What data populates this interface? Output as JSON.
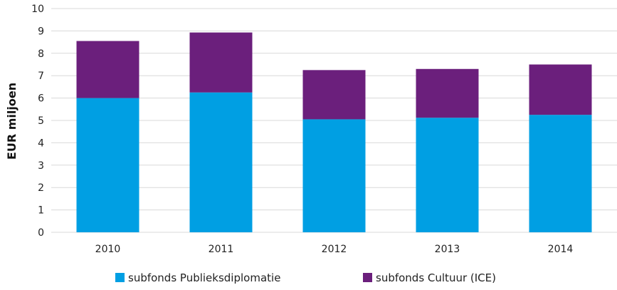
{
  "chart_data": {
    "type": "bar",
    "stacked": true,
    "categories": [
      "2010",
      "2011",
      "2012",
      "2013",
      "2014"
    ],
    "series": [
      {
        "name": "subfonds Publieksdiplomatie",
        "color": "#009fe3",
        "values": [
          6.0,
          6.25,
          5.05,
          5.12,
          5.25
        ]
      },
      {
        "name": "subfonds Cultuur (ICE)",
        "color": "#6b1f7c",
        "values": [
          2.55,
          2.68,
          2.2,
          2.18,
          2.25
        ]
      }
    ],
    "xlabel": "",
    "ylabel": "EUR miljoen",
    "ylim": [
      0,
      10
    ],
    "yticks": [
      0,
      1,
      2,
      3,
      4,
      5,
      6,
      7,
      8,
      9,
      10
    ],
    "grid": true,
    "legend_position": "bottom"
  }
}
